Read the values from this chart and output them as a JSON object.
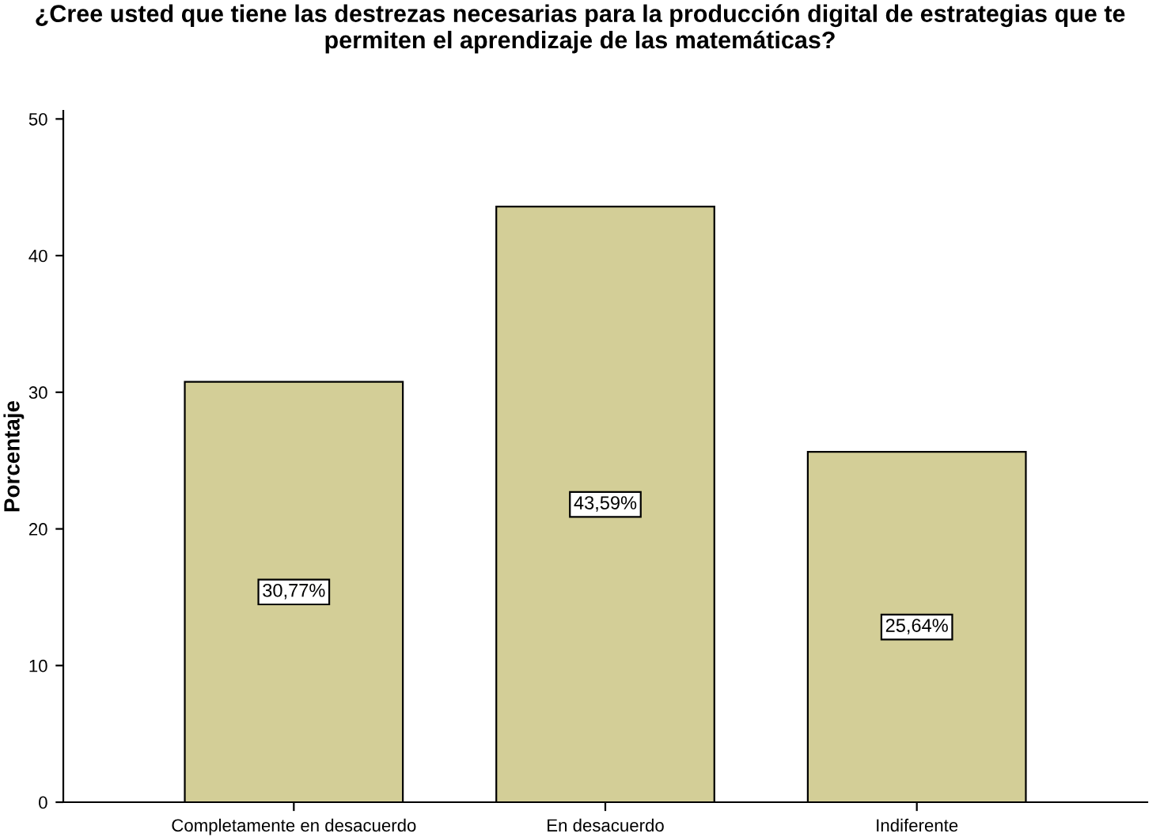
{
  "chart_data": {
    "type": "bar",
    "title": "¿Cree usted que tiene las destrezas necesarias para la producción digital de estrategias que te permiten el aprendizaje de las matemáticas?",
    "ylabel": "Porcentaje",
    "categories": [
      "Completamente en desacuerdo",
      "En desacuerdo",
      "Indiferente"
    ],
    "values": [
      30.77,
      43.59,
      25.64
    ],
    "value_labels": [
      "30,77%",
      "43,59%",
      "25,64%"
    ],
    "color": "#d3ce97",
    "ylim": [
      0,
      50.6
    ],
    "yticks": [
      0,
      10,
      20,
      30,
      40,
      50
    ],
    "grid": false,
    "legend": false
  }
}
